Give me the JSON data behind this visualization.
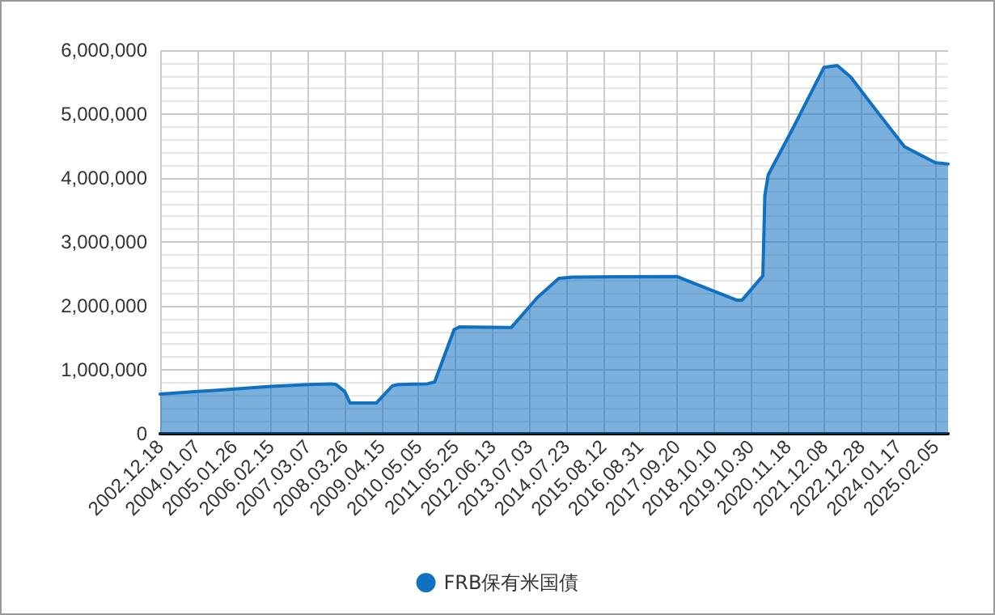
{
  "chart_data": {
    "type": "area",
    "x": [
      "2002-12-18",
      "2004-01-07",
      "2005-01-26",
      "2006-02-15",
      "2007-03-07",
      "2007-11-07",
      "2007-12-26",
      "2008-03-26",
      "2008-05-21",
      "2009-02-18",
      "2009-08-05",
      "2009-10-07",
      "2010-08-04",
      "2010-10-20",
      "2011-05-11",
      "2011-07-06",
      "2012-12-26",
      "2013-09-25",
      "2014-05-07",
      "2014-09-24",
      "2017-09-20",
      "2017-12-27",
      "2019-06-05",
      "2019-07-31",
      "2020-03-04",
      "2020-03-25",
      "2020-04-29",
      "2020-12-30",
      "2021-12-01",
      "2022-04-20",
      "2022-09-07",
      "2023-06-14",
      "2024-03-20",
      "2025-02-05",
      "2025-06-18"
    ],
    "series": [
      {
        "name": "FRB保有米国債",
        "color": "#1170c0",
        "values": [
          620000,
          660000,
          700000,
          740000,
          770000,
          780000,
          770000,
          660000,
          480000,
          480000,
          750000,
          770000,
          780000,
          810000,
          1630000,
          1670000,
          1660000,
          2130000,
          2430000,
          2450000,
          2460000,
          2400000,
          2090000,
          2090000,
          2470000,
          3730000,
          4050000,
          4740000,
          5730000,
          5760000,
          5580000,
          5030000,
          4490000,
          4240000,
          4220000
        ]
      }
    ],
    "xlim": [
      "2002-12-18",
      "2025-06-18"
    ],
    "xticks": [
      {
        "value": "2002-12-18",
        "label": "2002.12.18"
      },
      {
        "value": "2004-01-07",
        "label": "2004.01.07"
      },
      {
        "value": "2005-01-26",
        "label": "2005.01.26"
      },
      {
        "value": "2006-02-15",
        "label": "2006.02.15"
      },
      {
        "value": "2007-03-07",
        "label": "2007.03.07"
      },
      {
        "value": "2008-03-26",
        "label": "2008.03.26"
      },
      {
        "value": "2009-04-15",
        "label": "2009.04.15"
      },
      {
        "value": "2010-05-05",
        "label": "2010.05.05"
      },
      {
        "value": "2011-05-25",
        "label": "2011.05.25"
      },
      {
        "value": "2012-06-13",
        "label": "2012.06.13"
      },
      {
        "value": "2013-07-03",
        "label": "2013.07.03"
      },
      {
        "value": "2014-07-23",
        "label": "2014.07.23"
      },
      {
        "value": "2015-08-12",
        "label": "2015.08.12"
      },
      {
        "value": "2016-08-31",
        "label": "2016.08.31"
      },
      {
        "value": "2017-09-20",
        "label": "2017.09.20"
      },
      {
        "value": "2018-10-10",
        "label": "2018.10.10"
      },
      {
        "value": "2019-10-30",
        "label": "2019.10.30"
      },
      {
        "value": "2020-11-18",
        "label": "2020.11.18"
      },
      {
        "value": "2021-12-08",
        "label": "2021.12.08"
      },
      {
        "value": "2022-12-28",
        "label": "2022.12.28"
      },
      {
        "value": "2024-01-17",
        "label": "2024.01.17"
      },
      {
        "value": "2025-02-05",
        "label": "2025.02.05"
      }
    ],
    "ylim": [
      0,
      6000000
    ],
    "yticks": [
      {
        "value": 0,
        "label": "0"
      },
      {
        "value": 1000000,
        "label": "1,000,000"
      },
      {
        "value": 2000000,
        "label": "2,000,000"
      },
      {
        "value": 3000000,
        "label": "3,000,000"
      },
      {
        "value": 4000000,
        "label": "4,000,000"
      },
      {
        "value": 5000000,
        "label": "5,000,000"
      },
      {
        "value": 6000000,
        "label": "6,000,000"
      }
    ],
    "grid": true,
    "legend": "bottom",
    "marker": "none",
    "line_style": "solid"
  }
}
